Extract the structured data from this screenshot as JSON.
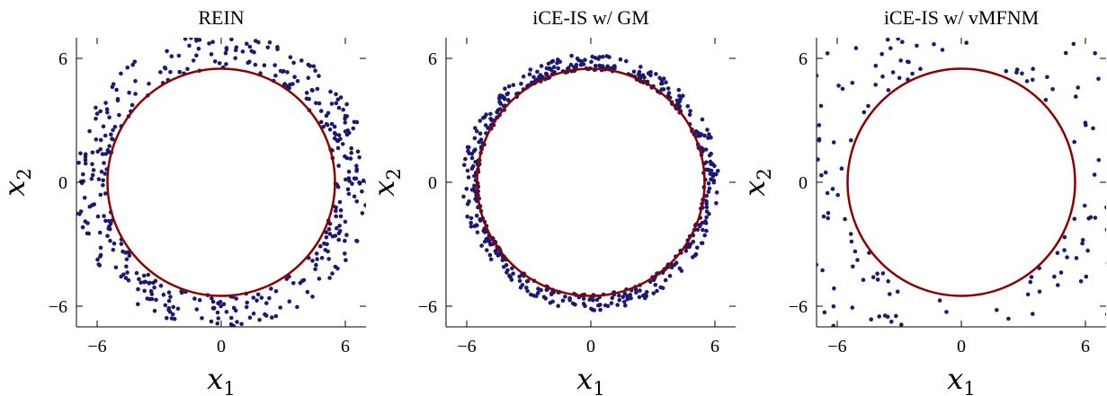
{
  "chart_data": [
    {
      "type": "scatter",
      "title": "REIN",
      "xlabel": "x1",
      "ylabel": "x2",
      "xlim": [
        -7,
        7
      ],
      "ylim": [
        -7,
        7
      ],
      "ticks": [
        -6,
        0,
        6
      ],
      "tick_labels": [
        "−6",
        "0",
        "6"
      ],
      "circle_radius": 5.5,
      "circle_color": "#8b0000",
      "point_color": "#1a1a70",
      "distribution": {
        "r_min": 5.5,
        "r_max": 7.2,
        "count": 430
      }
    },
    {
      "type": "scatter",
      "title": "iCE-IS w/ GM",
      "xlabel": "x1",
      "ylabel": "x2",
      "xlim": [
        -7,
        7
      ],
      "ylim": [
        -7,
        7
      ],
      "ticks": [
        -6,
        0,
        6
      ],
      "tick_labels": [
        "−6",
        "0",
        "6"
      ],
      "circle_radius": 5.5,
      "circle_color": "#8b0000",
      "point_color": "#1a1a70",
      "distribution": {
        "r_min": 5.45,
        "r_max": 6.2,
        "count": 560
      }
    },
    {
      "type": "scatter",
      "title": "iCE-IS w/ vMFNM",
      "xlabel": "x1",
      "ylabel": "x2",
      "xlim": [
        -7,
        7
      ],
      "ylim": [
        -7,
        7
      ],
      "ticks": [
        -6,
        0,
        6
      ],
      "tick_labels": [
        "−6",
        "0",
        "6"
      ],
      "circle_radius": 5.5,
      "circle_color": "#8b0000",
      "point_color": "#1a1a70",
      "distribution": {
        "r_min": 5.6,
        "r_max": 10.5,
        "count": 260
      }
    }
  ]
}
